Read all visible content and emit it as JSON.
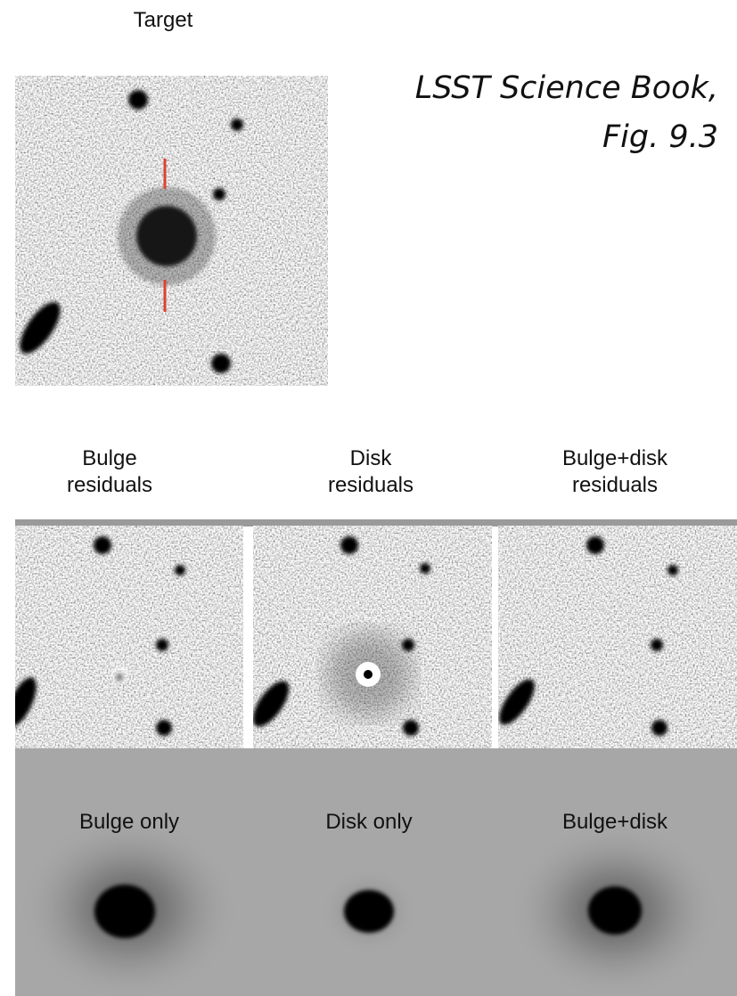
{
  "target": {
    "label": "Target"
  },
  "citation": {
    "lines": [
      "LSST Science Book,",
      "Fig. 9.3"
    ]
  },
  "residuals": [
    {
      "lines": [
        "Bulge",
        "residuals"
      ]
    },
    {
      "lines": [
        "Disk",
        "residuals"
      ]
    },
    {
      "lines": [
        "Bulge+disk",
        "residuals"
      ]
    }
  ],
  "models": [
    {
      "label": "Bulge only"
    },
    {
      "label": "Disk only"
    },
    {
      "label": "Bulge+disk"
    }
  ]
}
